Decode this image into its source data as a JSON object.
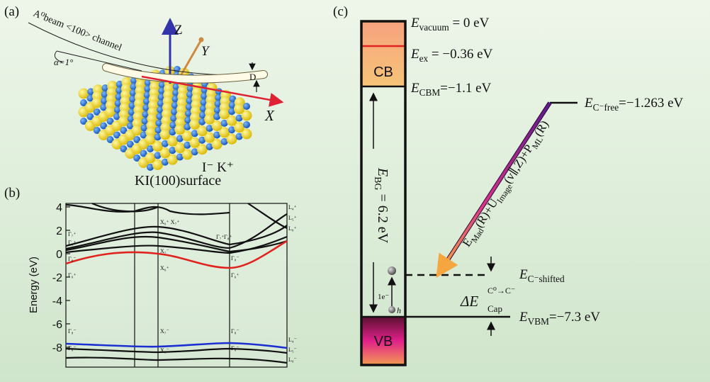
{
  "panel_labels": [
    "(a)",
    "(b)",
    "(c)"
  ],
  "panel_a": {
    "beam_label": "A⁰beam <100> channel",
    "angle_label": "α=1°",
    "axes": [
      "Z",
      "Y",
      "X"
    ],
    "distance_label": "D",
    "ions": "I⁻ K⁺",
    "caption": "KI(100)surface"
  },
  "panel_b": {
    "ylabel": "Energy (eV)",
    "ylim": [
      -9.7,
      4.3
    ],
    "yticks": [
      4,
      2,
      0,
      -2,
      -4,
      -6,
      -8
    ],
    "point_labels": [
      "Γ₇⁺",
      "Γ₈⁺",
      "Γ₈⁻",
      "Γ₆⁺",
      "Γ₈⁻",
      "Γ₆⁻",
      "X₆⁺ X₇⁺",
      "X₇⁻",
      "X₆⁺",
      "X₇⁻",
      "X₆⁻",
      "Γ₇⁺",
      "Γ₈⁺",
      "Γ₈⁻",
      "Γ₆⁺",
      "Γ₈⁻",
      "Γ₆⁻",
      "L₄⁺",
      "L₅⁺",
      "L₆⁺",
      "L₄⁻",
      "L₅⁻",
      "L₆⁻"
    ]
  },
  "panel_c": {
    "cb_label": "CB",
    "vb_label": "VB",
    "levels": [
      {
        "symbol": "E",
        "sub": "vacuum",
        "text": " = 0 eV"
      },
      {
        "symbol": "E",
        "sub": "ex",
        "text": " = −0.36 eV"
      },
      {
        "symbol": "E",
        "sub": "CBM",
        "text": "=−1.1 eV"
      },
      {
        "symbol": "E",
        "sub": "C⁻free",
        "text": "=−1.263 eV"
      },
      {
        "symbol": "E",
        "sub": "C⁻shifted"
      },
      {
        "symbol": "E",
        "sub": "VBM",
        "text": "=−7.3 eV"
      }
    ],
    "band_gap": {
      "symbol": "E",
      "sub": "BG",
      "text": " = 6.2 eV"
    },
    "capture": {
      "symbol": "ΔE",
      "sup": "C⁰→C⁻",
      "sub": "Cap"
    },
    "electron_label": "1e⁻",
    "hole_label": "h",
    "arrow_label": [
      {
        "text": "E"
      },
      {
        "sub": "Mad"
      },
      {
        "text": "(R)+U"
      },
      {
        "sub": "Image"
      },
      {
        "text": "(v∥,Z)+P"
      },
      {
        "sub": "ML"
      },
      {
        "text": "(R)"
      }
    ]
  }
}
